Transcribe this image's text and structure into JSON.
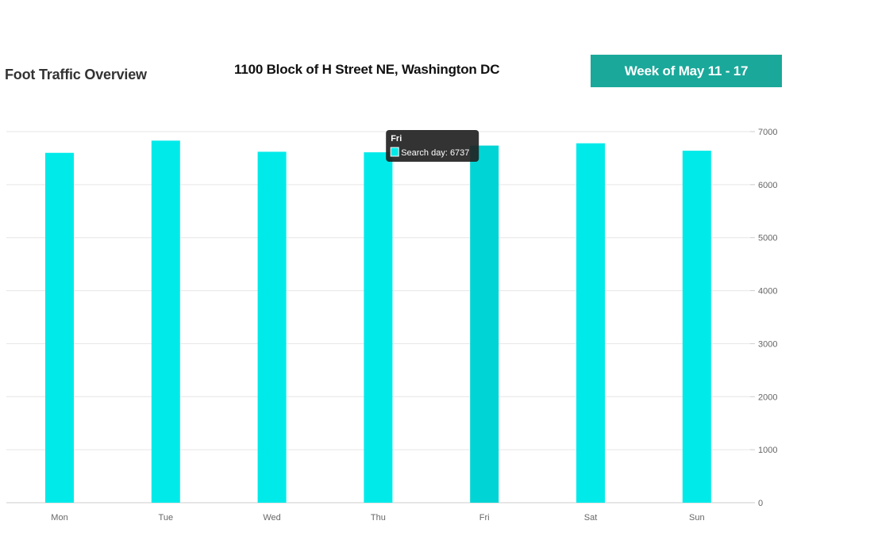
{
  "header": {
    "title": "Foot Traffic Overview",
    "location": "1100 Block of H Street NE, Washington DC",
    "week_label": "Week of May 11 - 17"
  },
  "colors": {
    "bar": "#00eaea",
    "bar_hover": "#00d4d4",
    "badge": "#1aa89a",
    "grid": "#e6e6e6",
    "axis": "#cccccc",
    "tooltip_bg": "#222222"
  },
  "chart_data": {
    "type": "bar",
    "title": "",
    "xlabel": "",
    "ylabel": "",
    "categories": [
      "Mon",
      "Tue",
      "Wed",
      "Thu",
      "Fri",
      "Sat",
      "Sun"
    ],
    "series": [
      {
        "name": "Search day",
        "values": [
          6600,
          6830,
          6620,
          6610,
          6737,
          6780,
          6640
        ]
      }
    ],
    "ylim": [
      0,
      7000
    ],
    "yticks": [
      0,
      1000,
      2000,
      3000,
      4000,
      5000,
      6000,
      7000
    ],
    "y_axis_side": "right",
    "grid": true,
    "highlighted_category": "Fri",
    "tooltip": {
      "title": "Fri",
      "text": "Search day: 6737"
    }
  }
}
